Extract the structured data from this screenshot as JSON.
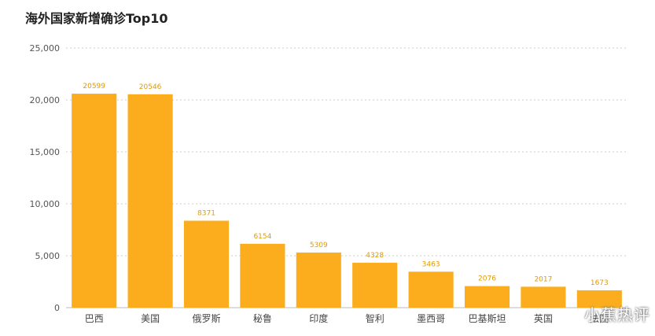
{
  "chart_data": {
    "type": "bar",
    "title": "海外国家新增确诊Top10",
    "categories": [
      "巴西",
      "美国",
      "俄罗斯",
      "秘鲁",
      "印度",
      "智利",
      "墨西哥",
      "巴基斯坦",
      "英国",
      "法国"
    ],
    "values": [
      20599,
      20546,
      8371,
      6154,
      5309,
      4328,
      3463,
      2076,
      2017,
      1673
    ],
    "data_labels": [
      "20599",
      "20546",
      "8371",
      "6154",
      "5309",
      "4328",
      "3463",
      "2076",
      "2017",
      "1673"
    ],
    "ylim": [
      0,
      25000
    ],
    "yticks": [
      0,
      5000,
      10000,
      15000,
      20000,
      25000
    ],
    "ytick_labels": [
      "0",
      "5,000",
      "10,000",
      "15,000",
      "20,000",
      "25,000"
    ],
    "grid": true,
    "bar_color": "#fbad1d",
    "label_color": "#e09a00",
    "xlabel": "",
    "ylabel": ""
  },
  "watermark": "小蕉热评"
}
